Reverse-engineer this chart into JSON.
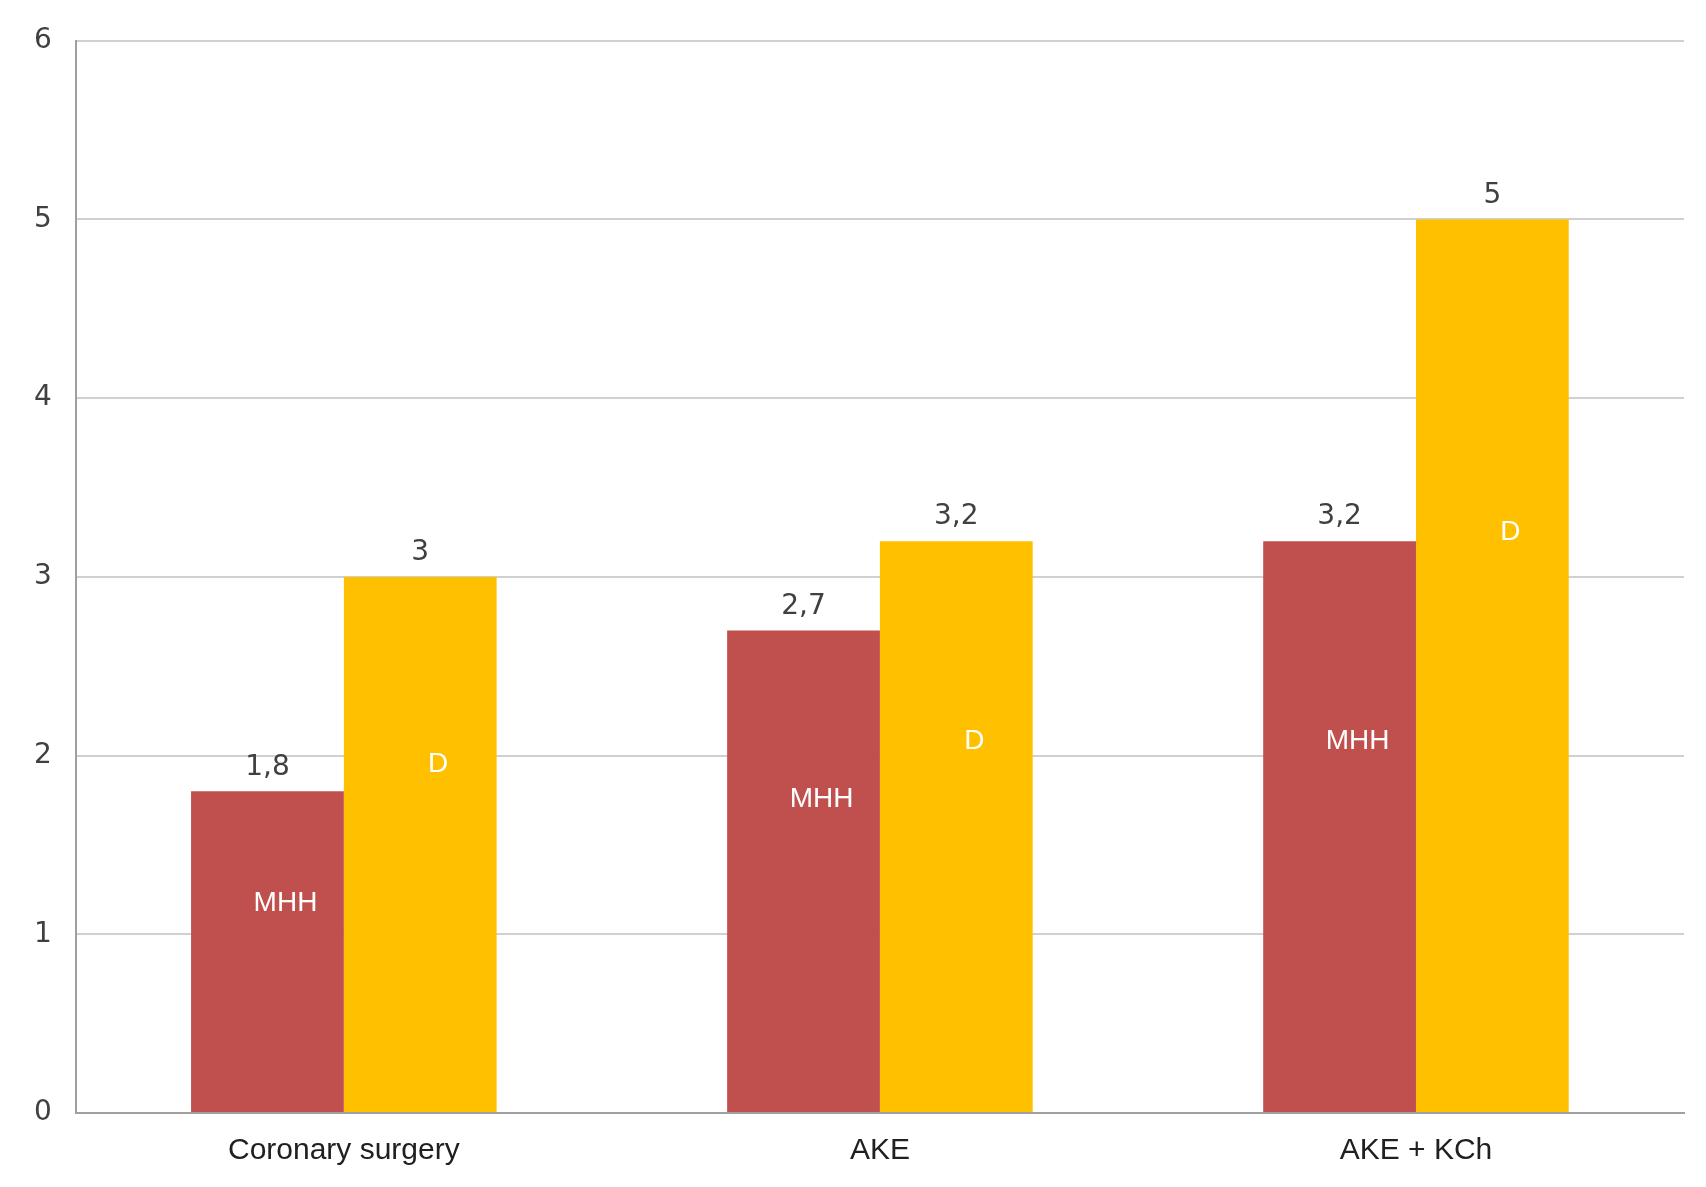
{
  "chart_data": {
    "type": "bar",
    "categories": [
      "Coronary surgery",
      "AKE",
      "AKE + KCh"
    ],
    "series": [
      {
        "name": "MHH",
        "color": "#c0504d",
        "values": [
          1.8,
          2.7,
          3.2
        ],
        "value_labels": [
          "1,8",
          "2,7",
          "3,2"
        ]
      },
      {
        "name": "D",
        "color": "#ffc000",
        "values": [
          3,
          3.2,
          5
        ],
        "value_labels": [
          "3",
          "3,2",
          "5"
        ]
      }
    ],
    "ylim": [
      0,
      6
    ],
    "yticks": [
      0,
      1,
      2,
      3,
      4,
      5,
      6
    ],
    "grid": "y",
    "legend": false
  }
}
